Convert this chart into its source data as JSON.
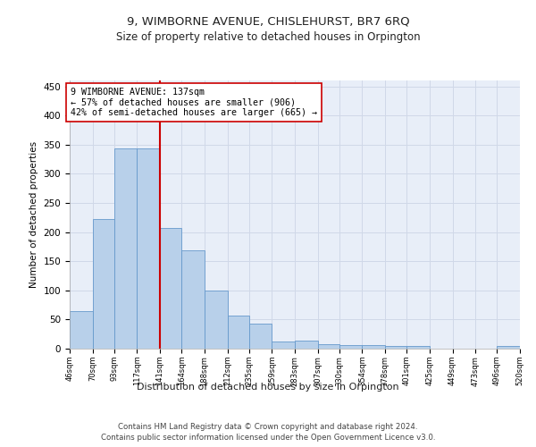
{
  "title": "9, WIMBORNE AVENUE, CHISLEHURST, BR7 6RQ",
  "subtitle": "Size of property relative to detached houses in Orpington",
  "xlabel": "Distribution of detached houses by size in Orpington",
  "ylabel": "Number of detached properties",
  "bar_color": "#b8d0ea",
  "bar_edge_color": "#6699cc",
  "background_color": "#ffffff",
  "axes_bg_color": "#e8eef8",
  "grid_color": "#d0d8e8",
  "vline_x": 141,
  "vline_color": "#cc0000",
  "annotation_lines": [
    "9 WIMBORNE AVENUE: 137sqm",
    "← 57% of detached houses are smaller (906)",
    "42% of semi-detached houses are larger (665) →"
  ],
  "bin_edges": [
    46,
    70,
    93,
    117,
    141,
    164,
    188,
    212,
    235,
    259,
    283,
    307,
    330,
    354,
    378,
    401,
    425,
    449,
    473,
    496,
    520
  ],
  "bar_heights": [
    65,
    222,
    344,
    344,
    207,
    168,
    99,
    56,
    43,
    13,
    14,
    8,
    6,
    6,
    5,
    4,
    0,
    0,
    0,
    4
  ],
  "ylim": [
    0,
    460
  ],
  "yticks": [
    0,
    50,
    100,
    150,
    200,
    250,
    300,
    350,
    400,
    450
  ],
  "footer_line1": "Contains HM Land Registry data © Crown copyright and database right 2024.",
  "footer_line2": "Contains public sector information licensed under the Open Government Licence v3.0."
}
